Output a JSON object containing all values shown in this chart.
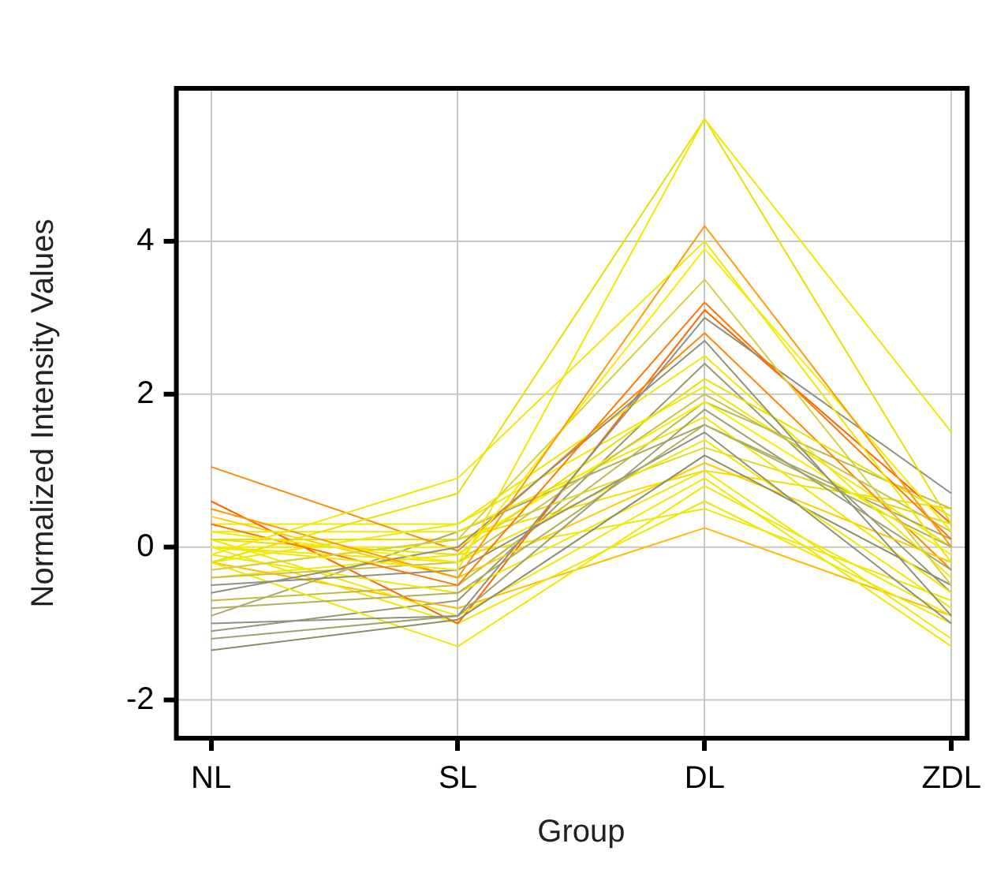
{
  "chart_data": {
    "type": "line",
    "xlabel": "Group",
    "ylabel": "Normalized Intensity Values",
    "categories": [
      "NL",
      "SL",
      "DL",
      "ZDL"
    ],
    "ylim": [
      -2.5,
      6
    ],
    "yticks": [
      -2,
      0,
      2,
      4
    ],
    "grid": true,
    "legend": false,
    "marker": "none",
    "line_style": "solid",
    "series": [
      {
        "color": "#f0e800",
        "values": [
          0.0,
          -0.3,
          5.6,
          1.5
        ]
      },
      {
        "color": "#e8e000",
        "values": [
          -0.2,
          0.7,
          5.6,
          0.3
        ]
      },
      {
        "color": "#f0e800",
        "values": [
          -0.1,
          0.9,
          4.0,
          -0.2
        ]
      },
      {
        "color": "#ff9900",
        "values": [
          0.5,
          -0.4,
          4.2,
          0.0
        ]
      },
      {
        "color": "#f8ec00",
        "values": [
          0.2,
          -0.2,
          3.9,
          0.2
        ]
      },
      {
        "color": "#d8d040",
        "values": [
          -0.3,
          0.1,
          3.5,
          -0.5
        ]
      },
      {
        "color": "#ff7700",
        "values": [
          0.3,
          -0.5,
          3.2,
          0.1
        ]
      },
      {
        "color": "#909080",
        "values": [
          -1.0,
          -0.9,
          3.0,
          0.7
        ]
      },
      {
        "color": "#909080",
        "values": [
          -0.6,
          0.0,
          2.7,
          -0.9
        ]
      },
      {
        "color": "#f0e800",
        "values": [
          -0.2,
          0.3,
          2.5,
          -0.4
        ]
      },
      {
        "color": "#e8e000",
        "values": [
          0.1,
          -0.1,
          2.2,
          0.4
        ]
      },
      {
        "color": "#c8c050",
        "values": [
          -0.4,
          -0.2,
          2.0,
          0.2
        ]
      },
      {
        "color": "#f8f000",
        "values": [
          0.0,
          0.0,
          1.9,
          -0.1
        ]
      },
      {
        "color": "#a0a070",
        "values": [
          -1.2,
          -0.9,
          1.8,
          -0.3
        ]
      },
      {
        "color": "#b0b060",
        "values": [
          -0.8,
          -0.6,
          1.6,
          0.0
        ]
      },
      {
        "color": "#f0e800",
        "values": [
          0.2,
          0.2,
          1.7,
          -0.6
        ]
      },
      {
        "color": "#909080",
        "values": [
          -0.5,
          -0.3,
          1.5,
          -1.0
        ]
      },
      {
        "color": "#f0e800",
        "values": [
          0.0,
          -0.2,
          1.4,
          -0.8
        ]
      },
      {
        "color": "#8c8c70",
        "values": [
          -1.35,
          -0.95,
          1.2,
          -0.5
        ]
      },
      {
        "color": "#e0d820",
        "values": [
          -0.3,
          0.1,
          1.3,
          0.3
        ]
      },
      {
        "color": "#ffcc00",
        "values": [
          0.4,
          -0.4,
          1.1,
          -0.2
        ]
      },
      {
        "color": "#f0e800",
        "values": [
          -0.1,
          -0.6,
          1.0,
          -1.2
        ]
      },
      {
        "color": "#f0e800",
        "values": [
          0.1,
          -0.9,
          0.9,
          -1.3
        ]
      },
      {
        "color": "#f0e800",
        "values": [
          -0.2,
          -1.3,
          0.8,
          -0.9
        ]
      },
      {
        "color": "#ff8800",
        "values": [
          1.05,
          -0.05,
          2.8,
          -0.3
        ]
      },
      {
        "color": "#ff6600",
        "values": [
          0.6,
          -1.0,
          3.1,
          0.3
        ]
      },
      {
        "color": "#c0b848",
        "values": [
          -0.7,
          -0.5,
          1.9,
          0.5
        ]
      },
      {
        "color": "#a8a868",
        "values": [
          -0.9,
          0.2,
          1.6,
          0.1
        ]
      },
      {
        "color": "#f0e800",
        "values": [
          0.0,
          -1.0,
          0.6,
          -1.0
        ]
      },
      {
        "color": "#ffbb00",
        "values": [
          -0.2,
          -0.8,
          0.25,
          -0.9
        ]
      },
      {
        "color": "#f0e800",
        "values": [
          0.3,
          0.3,
          2.1,
          0.0
        ]
      },
      {
        "color": "#f0e800",
        "values": [
          -0.4,
          -0.1,
          0.5,
          -0.7
        ]
      },
      {
        "color": "#989878",
        "values": [
          -1.1,
          -0.7,
          2.4,
          -0.6
        ]
      },
      {
        "color": "#f0e000",
        "values": [
          0.1,
          0.1,
          1.0,
          0.5
        ]
      }
    ]
  }
}
